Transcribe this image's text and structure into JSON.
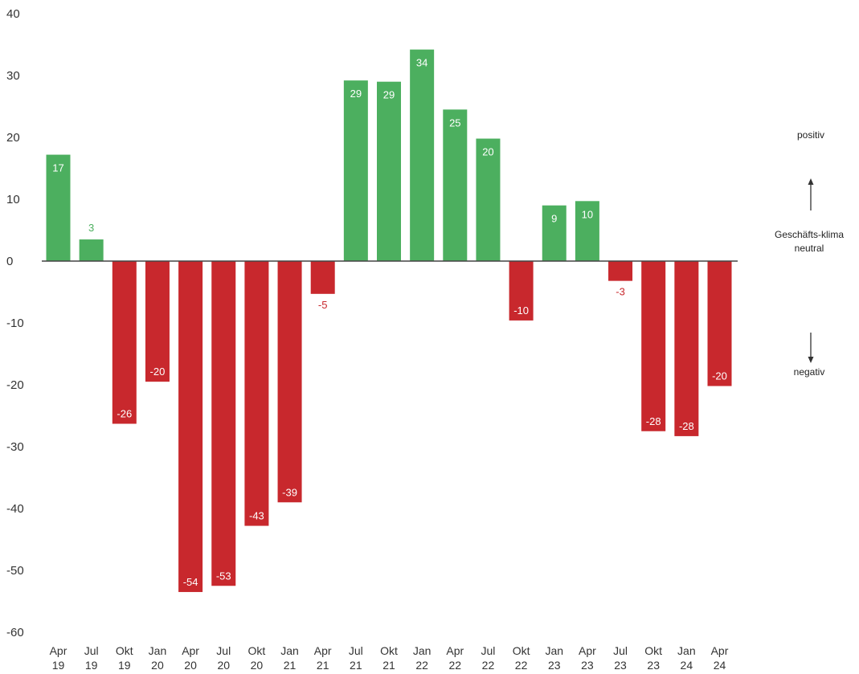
{
  "chart_data": {
    "type": "bar",
    "categories": [
      [
        "Apr",
        "19"
      ],
      [
        "Jul",
        "19"
      ],
      [
        "Okt",
        "19"
      ],
      [
        "Jan",
        "20"
      ],
      [
        "Apr",
        "20"
      ],
      [
        "Jul",
        "20"
      ],
      [
        "Okt",
        "20"
      ],
      [
        "Jan",
        "21"
      ],
      [
        "Apr",
        "21"
      ],
      [
        "Jul",
        "21"
      ],
      [
        "Okt",
        "21"
      ],
      [
        "Jan",
        "22"
      ],
      [
        "Apr",
        "22"
      ],
      [
        "Jul",
        "22"
      ],
      [
        "Okt",
        "22"
      ],
      [
        "Jan",
        "23"
      ],
      [
        "Apr",
        "23"
      ],
      [
        "Jul",
        "23"
      ],
      [
        "Okt",
        "23"
      ],
      [
        "Jan",
        "24"
      ],
      [
        "Apr",
        "24"
      ]
    ],
    "values": [
      17,
      3,
      -26,
      -20,
      -54,
      -53,
      -43,
      -39,
      -5,
      29,
      29,
      34,
      25,
      20,
      -10,
      9,
      10,
      -3,
      -28,
      -28,
      -20
    ],
    "bar_values": [
      17.2,
      3.5,
      -26.3,
      -19.5,
      -53.5,
      -52.5,
      -42.8,
      -39,
      -5.3,
      29.2,
      29,
      34.2,
      24.5,
      19.8,
      -9.6,
      9,
      9.7,
      -3.2,
      -27.5,
      -28.3,
      -20.2
    ],
    "ylim": [
      -60,
      40
    ],
    "yticks": [
      40,
      30,
      20,
      10,
      0,
      -10,
      -20,
      -30,
      -40,
      -50,
      -60
    ],
    "grid": false,
    "colors": {
      "positive": "#4caf5f",
      "negative": "#c8282d",
      "axis": "#444444"
    },
    "annotations": {
      "positive": "positiv",
      "neutral_line1": "Geschäfts-klima",
      "neutral_line2": "neutral",
      "negative": "negativ"
    }
  }
}
